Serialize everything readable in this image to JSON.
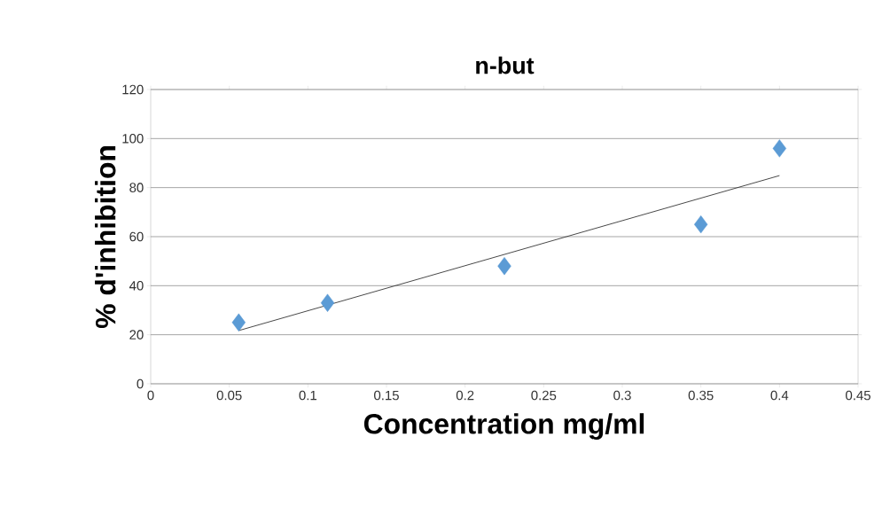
{
  "chart_data": {
    "type": "scatter",
    "title": "n-but",
    "xlabel": "Concentration mg/ml",
    "ylabel": "% d'inhibition",
    "xlim": [
      0,
      0.45
    ],
    "ylim": [
      0,
      120
    ],
    "xticks": [
      0,
      0.05,
      0.1,
      0.15,
      0.2,
      0.25,
      0.3,
      0.35,
      0.4,
      0.45
    ],
    "yticks": [
      0,
      20,
      40,
      60,
      80,
      100,
      120
    ],
    "grid": "y",
    "marker": "diamond",
    "series": [
      {
        "color": "#5b9bd5",
        "x": [
          0.056,
          0.1125,
          0.225,
          0.35,
          0.4
        ],
        "values": [
          25,
          33,
          48,
          65,
          96
        ]
      },
      {
        "type": "line",
        "color": "#333333",
        "marker": "none",
        "line_style": "solid",
        "x": [
          0.056,
          0.4
        ],
        "values": [
          21.7,
          84.9
        ]
      }
    ]
  }
}
